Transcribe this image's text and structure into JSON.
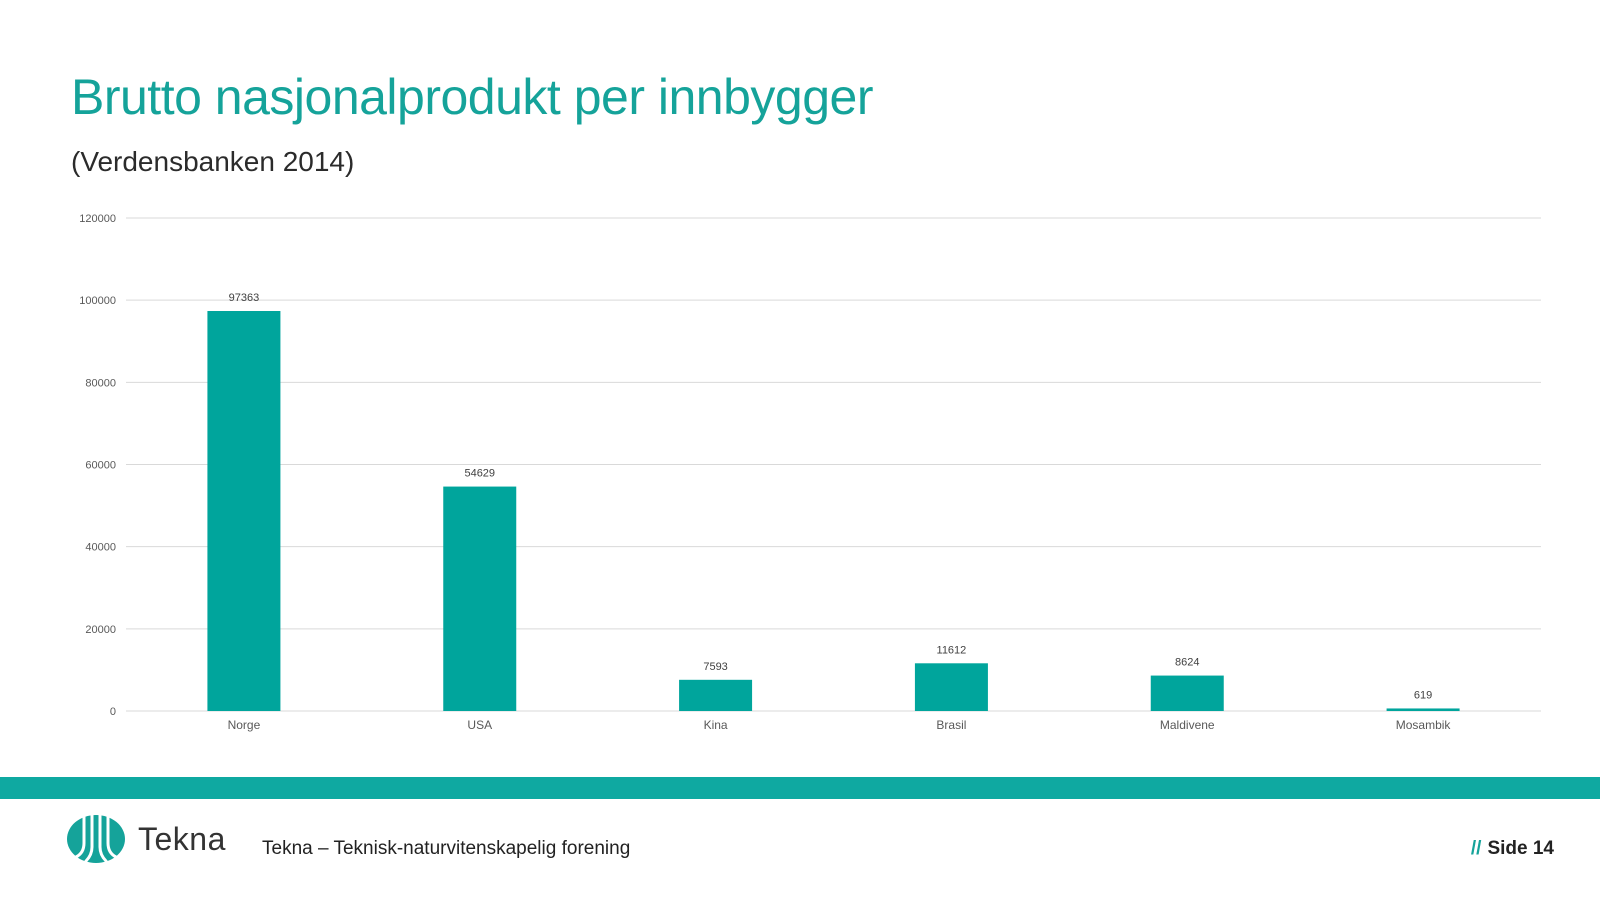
{
  "slide": {
    "title": "Brutto nasjonalprodukt per innbygger",
    "subtitle": "(Verdensbanken 2014)"
  },
  "chart_data": {
    "type": "bar",
    "title": "",
    "xlabel": "",
    "ylabel": "",
    "categories": [
      "Norge",
      "USA",
      "Kina",
      "Brasil",
      "Maldivene",
      "Mosambik"
    ],
    "values": [
      97363,
      54629,
      7593,
      11612,
      8624,
      619
    ],
    "data_labels": [
      "97363",
      "54629",
      "7593",
      "11612",
      "8624",
      "619"
    ],
    "yticks": [
      0,
      20000,
      40000,
      60000,
      80000,
      100000,
      120000
    ],
    "ylim": [
      0,
      120000
    ],
    "grid": true,
    "legend": "none",
    "bar_color": "#00a59c"
  },
  "footer": {
    "logo_text": "Tekna",
    "logo_icon": "tekna-logo-icon",
    "organization": "Tekna – Teknisk-naturvitenskapelig forening",
    "page_prefix": "//",
    "page_label": "Side 14",
    "band_color": "#0fa9a1"
  }
}
